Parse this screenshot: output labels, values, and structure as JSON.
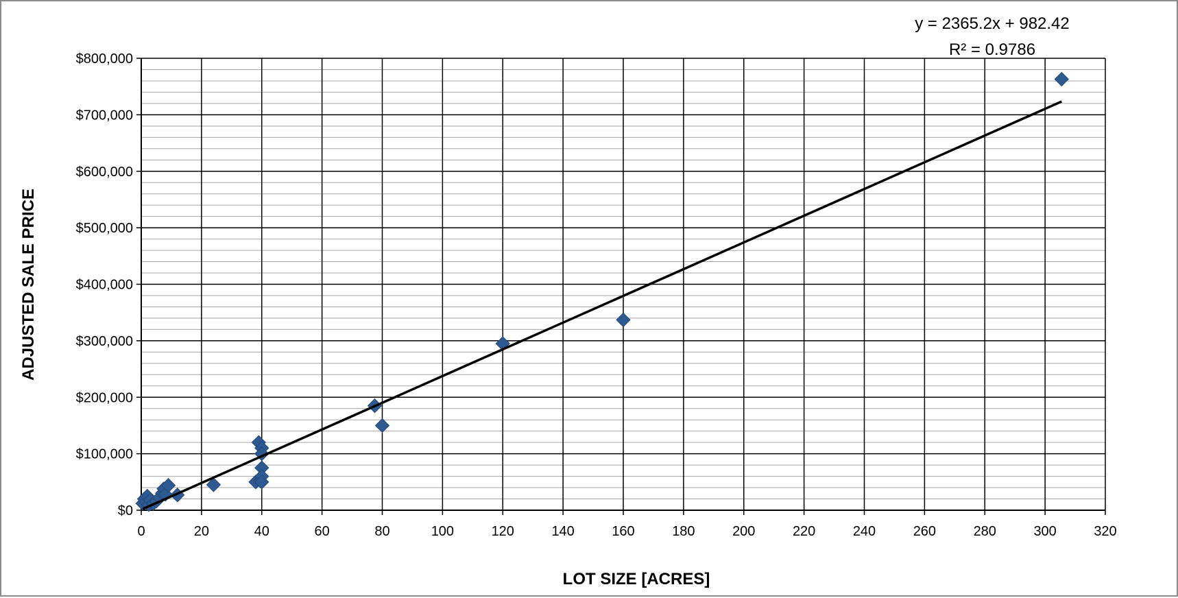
{
  "chart_data": {
    "type": "scatter",
    "title": "",
    "xlabel": "LOT SIZE [ACRES]",
    "ylabel": "ADJUSTED SALE PRICE",
    "xlim": [
      0,
      320
    ],
    "ylim": [
      0,
      800000
    ],
    "x_ticks": [
      0,
      20,
      40,
      60,
      80,
      100,
      120,
      140,
      160,
      180,
      200,
      220,
      240,
      260,
      280,
      300,
      320
    ],
    "x_tick_labels": [
      "0",
      "20",
      "40",
      "60",
      "80",
      "100",
      "120",
      "140",
      "160",
      "180",
      "200",
      "220",
      "240",
      "260",
      "280",
      "300",
      "320"
    ],
    "y_ticks": [
      0,
      100000,
      200000,
      300000,
      400000,
      500000,
      600000,
      700000,
      800000
    ],
    "y_tick_labels": [
      "$0",
      "$100,000",
      "$200,000",
      "$300,000",
      "$400,000",
      "$500,000",
      "$600,000",
      "$700,000",
      "$800,000"
    ],
    "major_gridlines": true,
    "minor_y_gridline_step": 20000,
    "legend": "none",
    "marker_color": "#2E5A91",
    "marker_shape": "diamond",
    "trendline_color": "#000000",
    "series": [
      {
        "points": [
          {
            "x": 0.5,
            "y": 12000
          },
          {
            "x": 1,
            "y": 20000
          },
          {
            "x": 1.5,
            "y": 15000
          },
          {
            "x": 2,
            "y": 25000
          },
          {
            "x": 2.5,
            "y": 10000
          },
          {
            "x": 3,
            "y": 18000
          },
          {
            "x": 4,
            "y": 12000
          },
          {
            "x": 5,
            "y": 16000
          },
          {
            "x": 6,
            "y": 22000
          },
          {
            "x": 7,
            "y": 30000
          },
          {
            "x": 7.5,
            "y": 38000
          },
          {
            "x": 8,
            "y": 28000
          },
          {
            "x": 9,
            "y": 44000
          },
          {
            "x": 12,
            "y": 27000
          },
          {
            "x": 24,
            "y": 45000
          },
          {
            "x": 38,
            "y": 50000
          },
          {
            "x": 39,
            "y": 120000
          },
          {
            "x": 39.5,
            "y": 52000
          },
          {
            "x": 40,
            "y": 110000
          },
          {
            "x": 40,
            "y": 100000
          },
          {
            "x": 40,
            "y": 75000
          },
          {
            "x": 40,
            "y": 60000
          },
          {
            "x": 40,
            "y": 50000
          },
          {
            "x": 77.5,
            "y": 185000
          },
          {
            "x": 80,
            "y": 150000
          },
          {
            "x": 120,
            "y": 295000
          },
          {
            "x": 160,
            "y": 337000
          },
          {
            "x": 305.5,
            "y": 763000
          }
        ]
      }
    ],
    "trendline": {
      "type": "linear",
      "slope": 2365.2,
      "intercept": 982.42,
      "x_from": 0.5,
      "x_to": 305.5,
      "equation_label": "y = 2365.2x + 982.42",
      "r2_label": "R² = 0.9786"
    }
  }
}
